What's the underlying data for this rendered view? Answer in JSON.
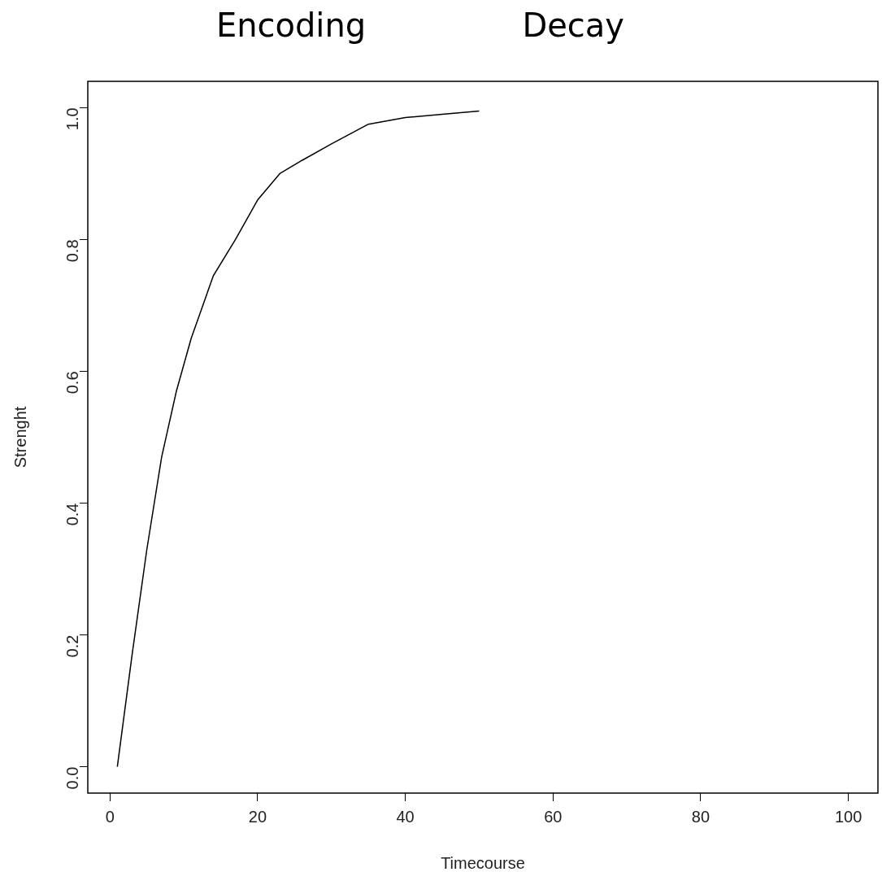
{
  "chart_data": {
    "type": "line",
    "xlabel": "Timecourse",
    "ylabel": "Strenght",
    "annotations": [
      "Encoding",
      "Decay"
    ],
    "x": [
      1,
      3,
      5,
      7,
      9,
      11,
      14,
      17,
      20,
      23,
      26,
      30,
      35,
      40,
      45,
      50
    ],
    "series": [
      {
        "color": "#000000",
        "values": [
          0,
          0.17,
          0.33,
          0.47,
          0.57,
          0.65,
          0.745,
          0.8,
          0.86,
          0.9,
          0.92,
          0.945,
          0.975,
          0.985,
          0.99,
          0.995
        ]
      }
    ],
    "xlim": [
      -3,
      104
    ],
    "ylim": [
      -0.04,
      1.04
    ],
    "xticks": [
      0,
      20,
      40,
      60,
      80,
      100
    ],
    "yticks": [
      {
        "value": 0,
        "label": "0.0"
      },
      0.2,
      0.4,
      0.6,
      0.8,
      {
        "value": 1,
        "label": "1.0"
      }
    ],
    "grid": false,
    "legend": false,
    "marker": "none",
    "line_style": "solid"
  }
}
